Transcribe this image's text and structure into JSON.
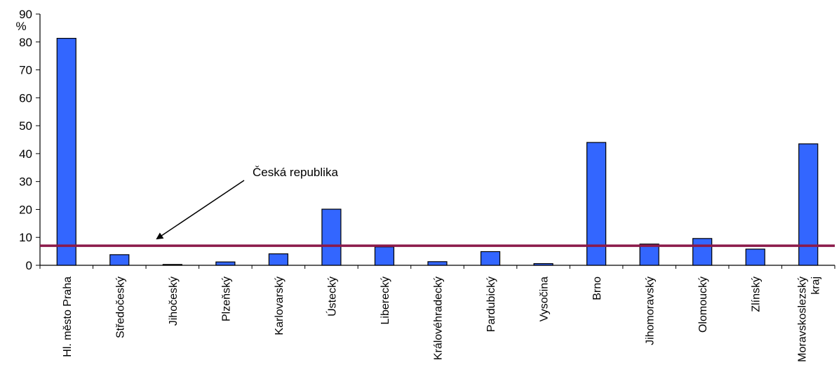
{
  "chart_data": {
    "type": "bar",
    "title": "",
    "xlabel": "",
    "ylabel": "%",
    "ylim": [
      0,
      90
    ],
    "yticks": [
      0,
      10,
      20,
      30,
      40,
      50,
      60,
      70,
      80,
      90
    ],
    "grid": false,
    "legend": "none",
    "categories": [
      [
        "Hl. město Praha"
      ],
      [
        "Středočeský"
      ],
      [
        "Jihočeský"
      ],
      [
        "Plzeňský"
      ],
      [
        "Karlovarský"
      ],
      [
        "Ústecký"
      ],
      [
        "Liberecký"
      ],
      [
        "Královéhradecký"
      ],
      [
        "Pardubický"
      ],
      [
        "Vysočina"
      ],
      [
        "Brno"
      ],
      [
        "Jihomoravský"
      ],
      [
        "Olomoucký"
      ],
      [
        "Zlínský"
      ],
      [
        "Moravskoslezský",
        "kraj"
      ]
    ],
    "values": [
      81.3,
      3.8,
      0.3,
      1.2,
      4.1,
      20.1,
      6.6,
      1.3,
      4.9,
      0.6,
      44.0,
      7.6,
      9.6,
      5.8,
      43.5
    ],
    "reference_line": {
      "label": "Česká republika",
      "value": 7.0,
      "color": "#8b1a4a"
    },
    "bar_color": "#3366ff"
  }
}
